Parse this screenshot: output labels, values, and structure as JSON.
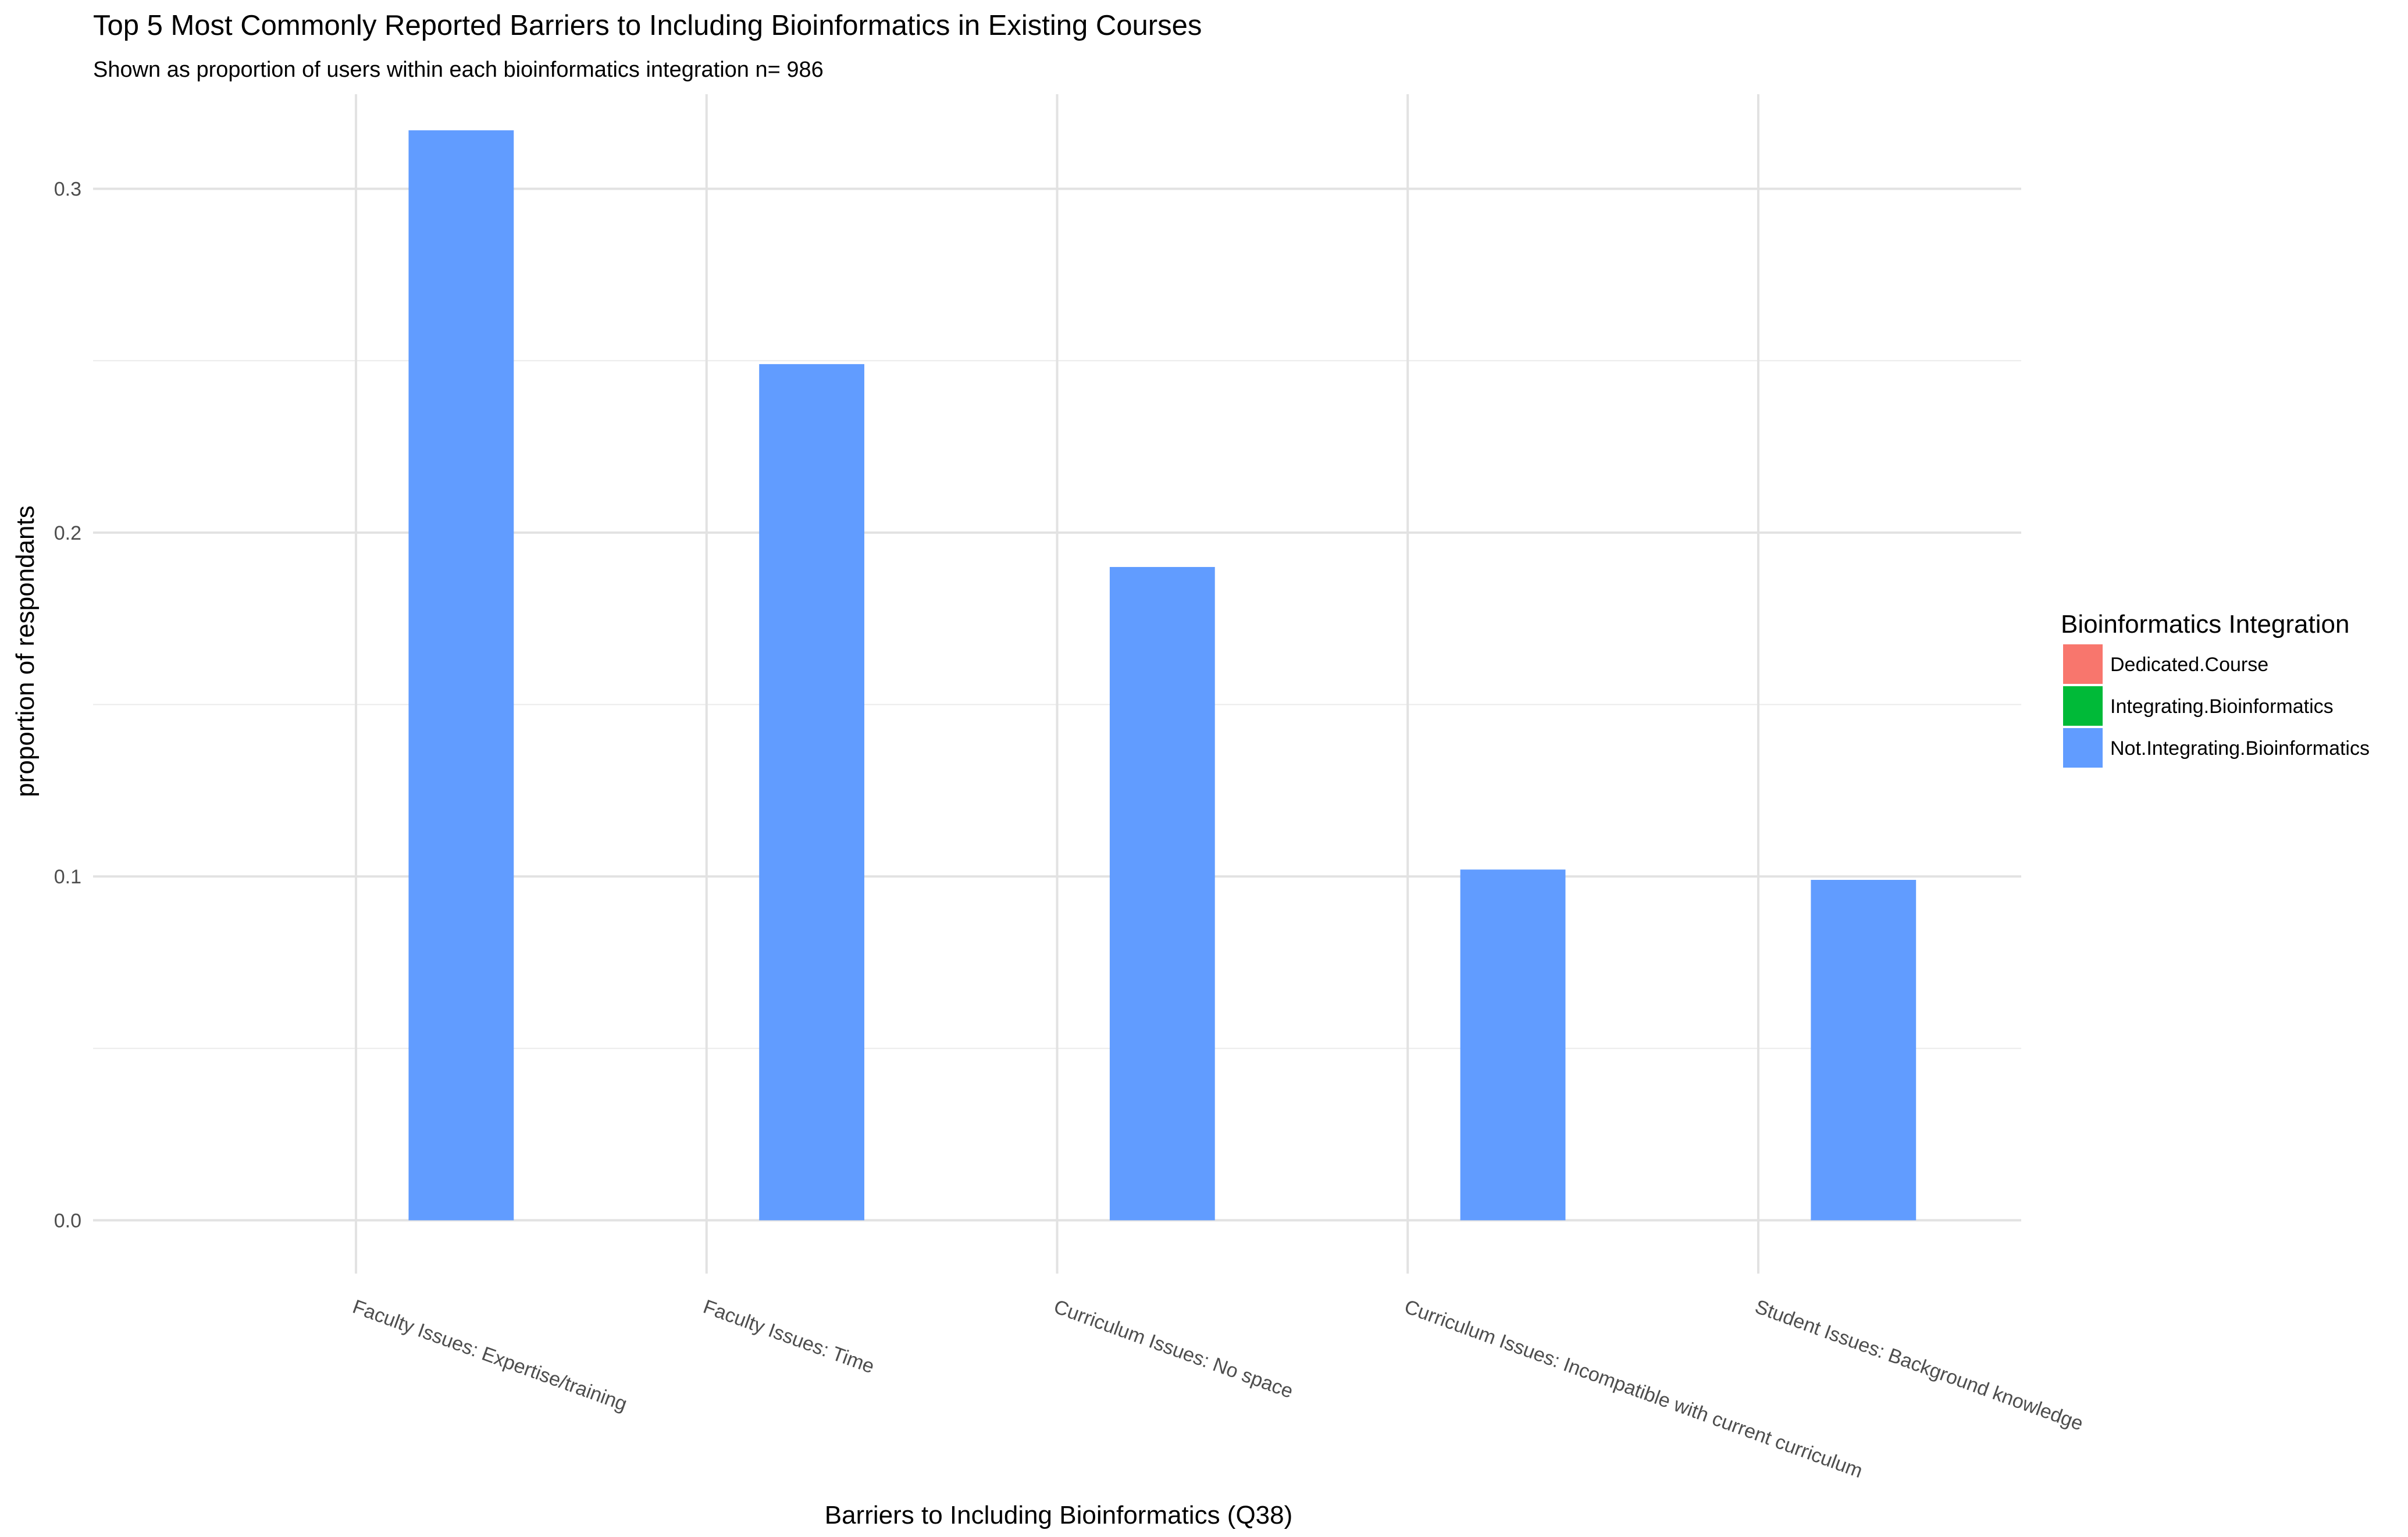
{
  "chart_data": {
    "type": "bar",
    "title": "Top 5 Most Commonly Reported Barriers to Including Bioinformatics in Existing Courses",
    "subtitle": "Shown as proportion of users within each bioinformatics integration n= 986",
    "xlabel": "Barriers to Including Bioinformatics (Q38)",
    "ylabel": "proportion of respondants",
    "ylim": [
      -0.0155,
      0.3275
    ],
    "y_ticks": [
      0.0,
      0.1,
      0.2,
      0.3
    ],
    "y_tick_labels": [
      "0.0",
      "0.1",
      "0.2",
      "0.3"
    ],
    "grid": true,
    "categories": [
      "Faculty Issues: Expertise/training",
      "Faculty Issues: Time",
      "Curriculum Issues: No space",
      "Curriculum Issues: Incompatible with current curriculum",
      "Student Issues: Background knowledge"
    ],
    "series": [
      {
        "name": "Dedicated.Course",
        "color": "#F8766D",
        "values": [
          0,
          0,
          0,
          0,
          0
        ]
      },
      {
        "name": "Integrating.Bioinformatics",
        "color": "#00BA38",
        "values": [
          0,
          0,
          0,
          0,
          0
        ]
      },
      {
        "name": "Not.Integrating.Bioinformatics",
        "color": "#619CFF",
        "values": [
          0.317,
          0.249,
          0.19,
          0.102,
          0.099
        ]
      }
    ],
    "legend": {
      "title": "Bioinformatics Integration",
      "position": "right"
    }
  }
}
